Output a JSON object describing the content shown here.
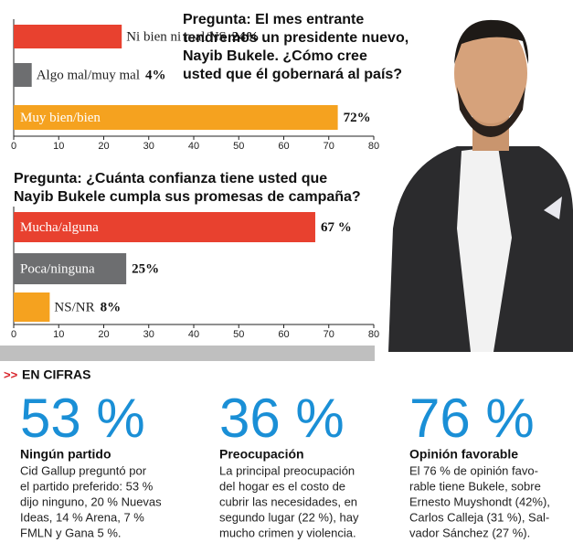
{
  "chart_data": [
    {
      "type": "bar",
      "orientation": "horizontal",
      "title": [
        "Pregunta: El mes entrante",
        "tendremos un presidente nuevo,",
        "Nayib Bukele. ¿Cómo cree",
        "usted que él gobernará al país?"
      ],
      "categories": [
        "Ni bien ni mal/NS",
        "Algo mal/muy mal",
        "Muy bien/bien"
      ],
      "values": [
        24,
        4,
        72
      ],
      "value_labels": [
        "24%",
        "4%",
        "72%"
      ],
      "colors": [
        "#e8412f",
        "#6d6e70",
        "#f5a21f"
      ],
      "xlim": [
        0,
        80
      ],
      "xticks": [
        0,
        10,
        20,
        30,
        40,
        50,
        60,
        70,
        80
      ]
    },
    {
      "type": "bar",
      "orientation": "horizontal",
      "title": [
        "Pregunta: ¿Cuánta confianza tiene usted que",
        "Nayib Bukele cumpla sus promesas de campaña?"
      ],
      "categories": [
        "Mucha/alguna",
        "Poca/ninguna",
        "NS/NR"
      ],
      "values": [
        67,
        25,
        8
      ],
      "value_labels": [
        "67 %",
        "25%",
        "8%"
      ],
      "colors": [
        "#e8412f",
        "#6d6e70",
        "#f5a21f"
      ],
      "xlim": [
        0,
        80
      ],
      "xticks": [
        0,
        10,
        20,
        30,
        40,
        50,
        60,
        70,
        80
      ]
    }
  ],
  "section": {
    "marker": ">>",
    "title": "EN CIFRAS"
  },
  "stats": [
    {
      "figure": "53 %",
      "heading": "Ningún partido",
      "lines": [
        "Cid Gallup preguntó por",
        "el partido preferido: 53 %",
        "dijo ninguno, 20 % Nuevas",
        "Ideas, 14 % Arena, 7 %",
        "FMLN y Gana 5 %."
      ]
    },
    {
      "figure": "36 %",
      "heading": "Preocupación",
      "lines": [
        "La principal preocupación",
        "del hogar es el costo de",
        "cubrir las necesidades, en",
        "segundo lugar (22 %), hay",
        "mucho crimen y violencia."
      ]
    },
    {
      "figure": "76 %",
      "heading": "Opinión favorable",
      "lines": [
        "El 76 % de opinión favo-",
        "rable tiene Bukele, sobre",
        "Ernesto Muyshondt (42%),",
        "Carlos Calleja (31 %), Sal-",
        "vador Sánchez (27 %)."
      ]
    }
  ]
}
